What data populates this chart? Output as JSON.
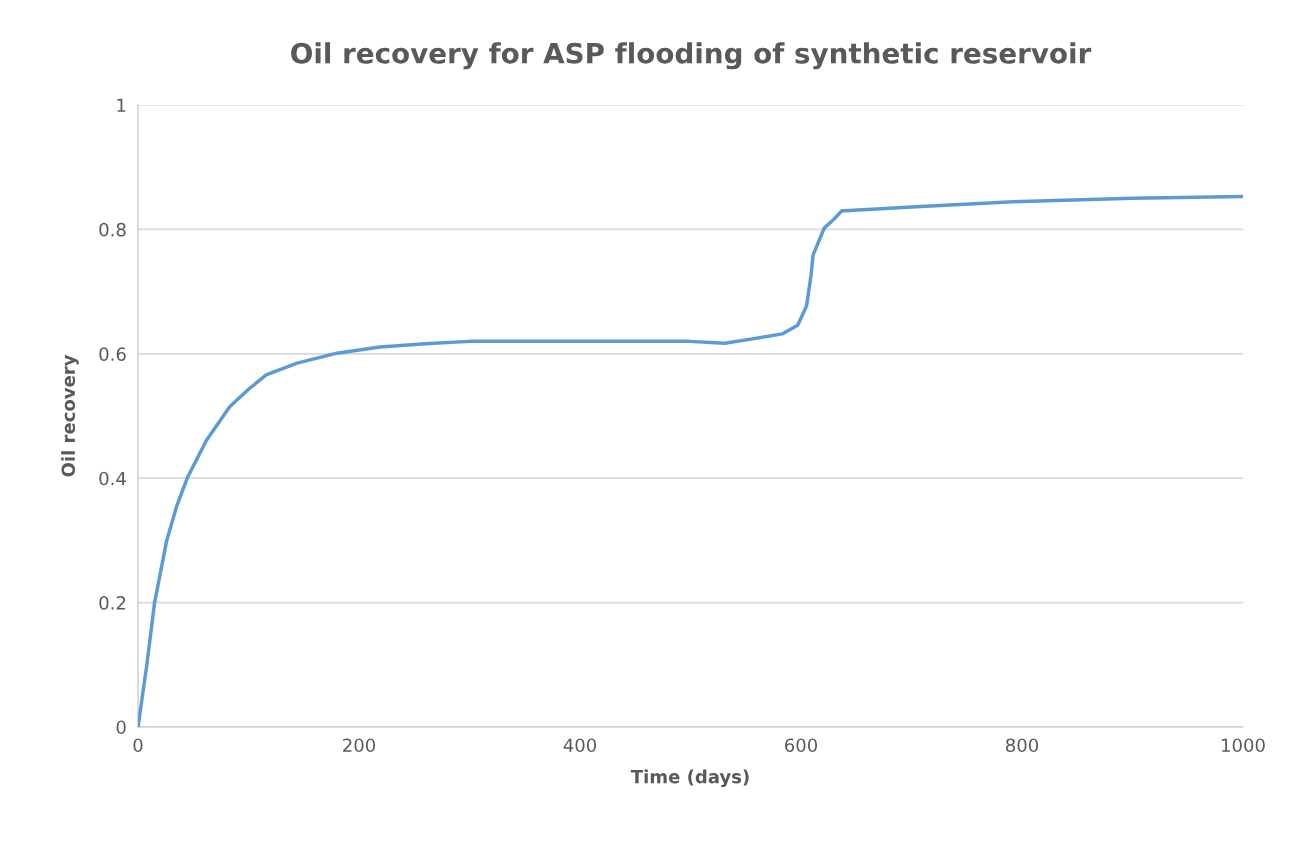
{
  "chart_data": {
    "type": "line",
    "title": "Oil recovery for ASP flooding of synthetic reservoir",
    "xlabel": "Time (days)",
    "ylabel": "Oil recovery",
    "series": [
      {
        "color": "#5b9bd5",
        "x": [
          0,
          8,
          15,
          26,
          35,
          45,
          62,
          83,
          100,
          116,
          144,
          180,
          219,
          260,
          300,
          350,
          400,
          450,
          499,
          531,
          556,
          583,
          597,
          605,
          609,
          611,
          621,
          629,
          637,
          640,
          700,
          800,
          900,
          1000
        ],
        "values": [
          0,
          0.1,
          0.2,
          0.3,
          0.355,
          0.402,
          0.461,
          0.515,
          0.543,
          0.566,
          0.585,
          0.601,
          0.611,
          0.616,
          0.62,
          0.62,
          0.62,
          0.62,
          0.62,
          0.617,
          0.624,
          0.632,
          0.646,
          0.677,
          0.725,
          0.759,
          0.802,
          0.815,
          0.83,
          0.83,
          0.836,
          0.845,
          0.85,
          0.853
        ]
      }
    ],
    "xlim": [
      0,
      1000
    ],
    "ylim": [
      0,
      1
    ],
    "xticks": [
      0,
      200,
      400,
      600,
      800,
      1000
    ],
    "yticks": [
      0,
      0.2,
      0.4,
      0.6,
      0.8,
      1
    ],
    "grid": "y",
    "marker": "none",
    "line_style": "solid"
  }
}
